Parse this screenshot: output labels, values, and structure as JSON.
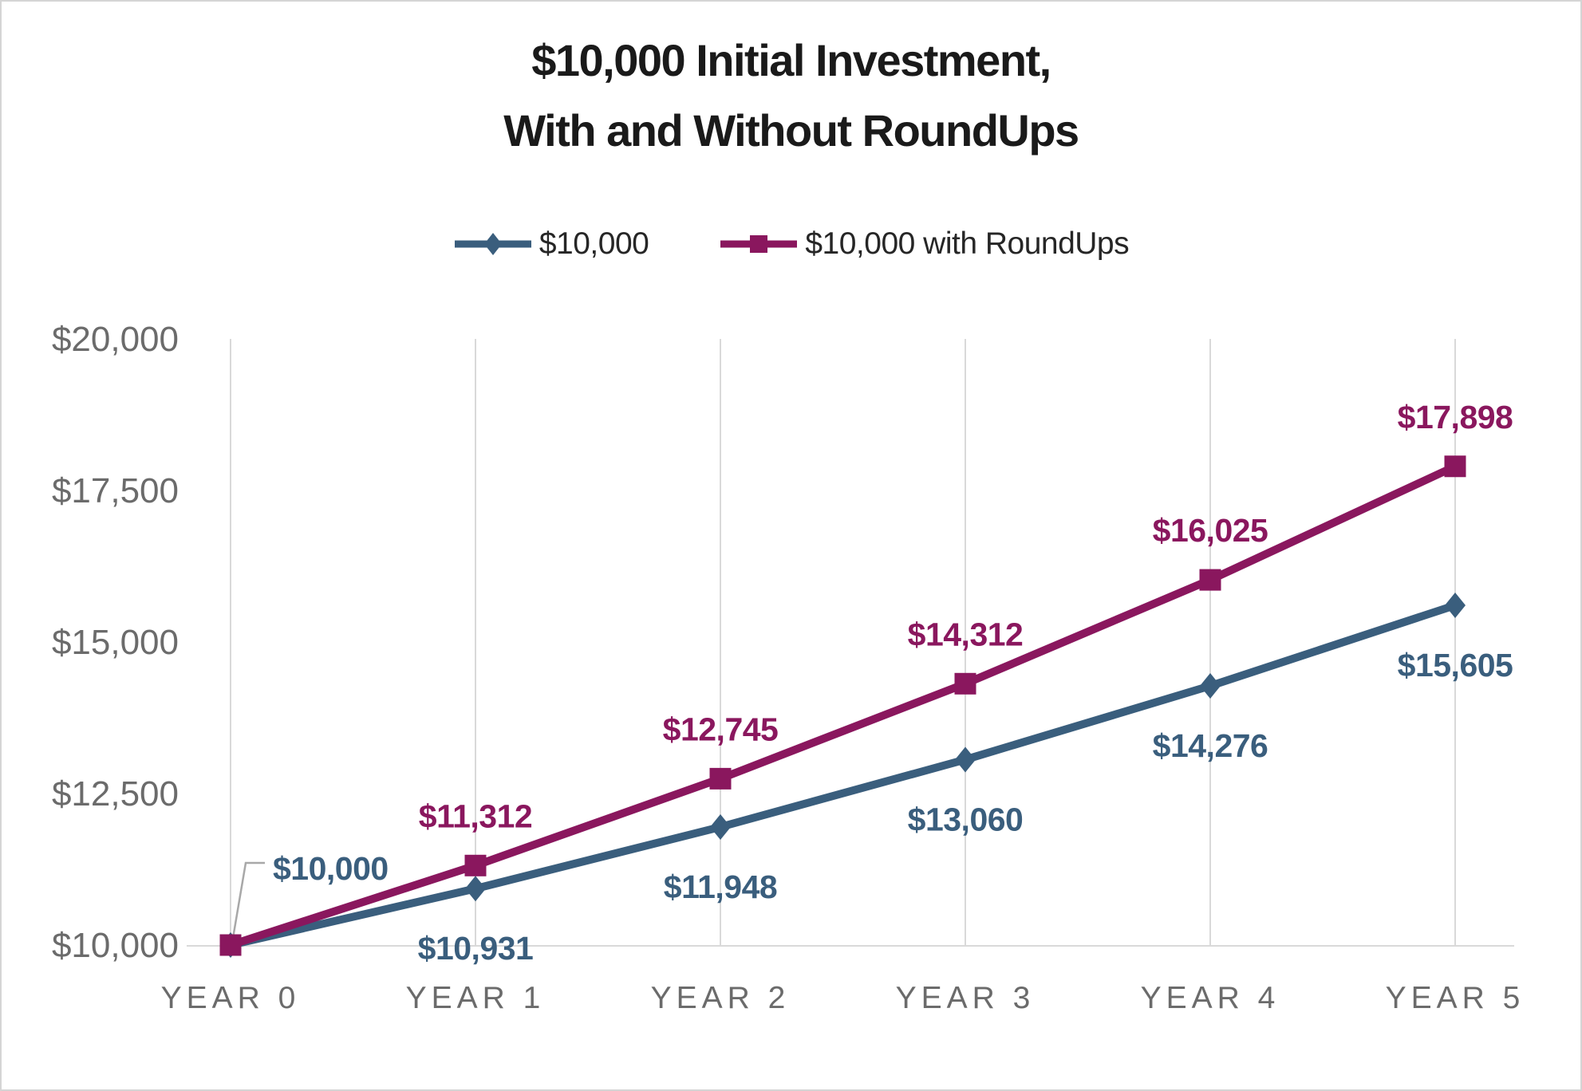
{
  "chart_data": {
    "type": "line",
    "title": "$10,000 Initial Investment, With and Without RoundUps",
    "title_lines": [
      "$10,000 Initial Investment,",
      "With and Without RoundUps"
    ],
    "categories": [
      "YEAR 0",
      "YEAR 1",
      "YEAR 2",
      "YEAR 3",
      "YEAR 4",
      "YEAR 5"
    ],
    "x": [
      0,
      1,
      2,
      3,
      4,
      5
    ],
    "y_ticks": [
      {
        "label": "$20,000",
        "value": 20000
      },
      {
        "label": "$17,500",
        "value": 17500
      },
      {
        "label": "$15,000",
        "value": 15000
      },
      {
        "label": "$12,500",
        "value": 12500
      },
      {
        "label": "$10,000",
        "value": 10000
      }
    ],
    "ylim": [
      10000,
      20000
    ],
    "grid": "vertical-category-gridlines-only",
    "legend_position": "top",
    "series": [
      {
        "name": "$10,000",
        "color": "#3A5E7D",
        "marker": "diamond",
        "values": [
          10000,
          10931,
          11948,
          13060,
          14276,
          15605
        ],
        "labels": [
          "",
          "$10,931",
          "$11,948",
          "$13,060",
          "$14,276",
          "$15,605"
        ],
        "label_side": "below"
      },
      {
        "name": "$10,000 with RoundUps",
        "color": "#8A175E",
        "marker": "square",
        "values": [
          10000,
          11312,
          12745,
          14312,
          16025,
          17898
        ],
        "labels": [
          "",
          "$11,312",
          "$12,745",
          "$14,312",
          "$16,025",
          "$17,898"
        ],
        "label_side": "above"
      }
    ],
    "callout": {
      "text": "$10,000",
      "series_index": 0,
      "point_index": 0
    }
  },
  "colors": {
    "background": "#FFFFFF",
    "border": "#D5D5D5",
    "title_text": "#1A1A1A",
    "legend_text": "#262626",
    "axis_text": "#6B6B6B",
    "gridline": "#D9D9D9",
    "leader_line": "#A8A8A8",
    "series_blue": "#3A5E7D",
    "series_magenta": "#8A175E"
  }
}
